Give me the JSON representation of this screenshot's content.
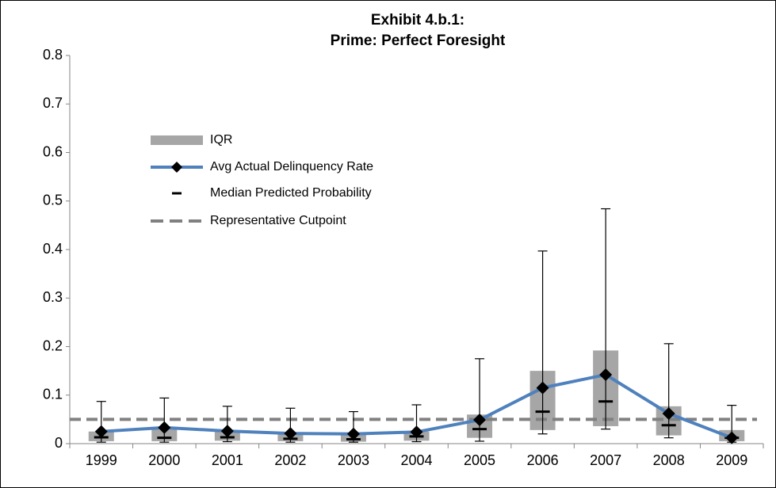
{
  "chart_data": {
    "type": "box",
    "title": "Exhibit 4.b.1:",
    "subtitle": "Prime: Perfect Foresight",
    "categories": [
      "1999",
      "2000",
      "2001",
      "2002",
      "2003",
      "2004",
      "2005",
      "2006",
      "2007",
      "2008",
      "2009"
    ],
    "ylim": [
      0,
      0.8
    ],
    "yticks": [
      0,
      0.1,
      0.2,
      0.3,
      0.4,
      0.5,
      0.6,
      0.7,
      0.8
    ],
    "series": [
      {
        "name": "IQR",
        "color": "#a6a6a6",
        "q1": [
          0.005,
          0.005,
          0.006,
          0.005,
          0.004,
          0.006,
          0.012,
          0.028,
          0.036,
          0.017,
          0.005
        ],
        "q3": [
          0.025,
          0.03,
          0.025,
          0.02,
          0.02,
          0.025,
          0.06,
          0.15,
          0.192,
          0.077,
          0.028
        ]
      },
      {
        "name": "Avg Actual Delinquency Rate",
        "color": "#4f81bd",
        "values": [
          0.025,
          0.033,
          0.026,
          0.021,
          0.02,
          0.024,
          0.049,
          0.115,
          0.142,
          0.062,
          0.012
        ]
      },
      {
        "name": "Median Predicted Probability",
        "color": "#000000",
        "values": [
          0.013,
          0.012,
          0.013,
          0.01,
          0.009,
          0.015,
          0.03,
          0.066,
          0.087,
          0.038,
          0.012
        ]
      },
      {
        "name": "Representative Cutpoint",
        "color": "#808080",
        "value": 0.05
      }
    ],
    "whiskers": {
      "low": [
        0.003,
        0.003,
        0.004,
        0.003,
        0.003,
        0.004,
        0.005,
        0.02,
        0.03,
        0.012,
        0.003
      ],
      "high": [
        0.087,
        0.094,
        0.077,
        0.073,
        0.066,
        0.08,
        0.175,
        0.397,
        0.484,
        0.206,
        0.079
      ]
    }
  }
}
